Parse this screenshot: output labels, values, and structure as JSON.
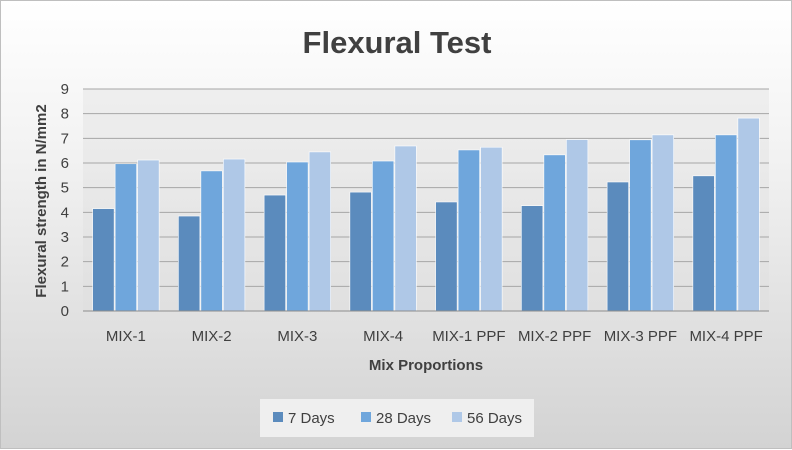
{
  "chart_data": {
    "type": "bar",
    "title": "Flexural Test",
    "xlabel": "Mix Proportions",
    "ylabel": "Flexural strength in N/mm2",
    "ylim": [
      0,
      9
    ],
    "yticks": [
      "0",
      "1",
      "2",
      "3",
      "4",
      "5",
      "6",
      "7",
      "8",
      "9"
    ],
    "grid": true,
    "legend_position": "bottom",
    "categories": [
      "MIX-1",
      "MIX-2",
      "MIX-3",
      "MIX-4",
      "MIX-1 PPF",
      "MIX-2 PPF",
      "MIX-3 PPF",
      "MIX-4 PPF"
    ],
    "series": [
      {
        "name": "7 Days",
        "color": "#5b8bbd",
        "values": [
          4.15,
          3.85,
          4.7,
          4.82,
          4.42,
          4.27,
          5.23,
          5.48
        ]
      },
      {
        "name": "28 Days",
        "color": "#6fa6dc",
        "values": [
          5.97,
          5.68,
          6.04,
          6.08,
          6.53,
          6.33,
          6.94,
          7.14
        ]
      },
      {
        "name": "56 Days",
        "color": "#afc8e7",
        "values": [
          6.12,
          6.16,
          6.45,
          6.69,
          6.64,
          6.95,
          7.14,
          7.82
        ]
      }
    ]
  }
}
